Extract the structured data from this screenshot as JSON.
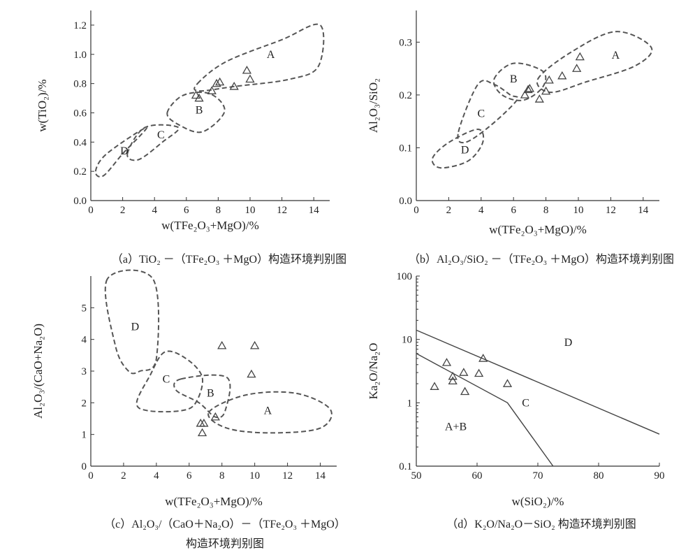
{
  "chart_data": [
    {
      "type": "scatter",
      "caption": "（a）TiO₂ －（TFe₂O₃ ＋MgO）构造环境判别图",
      "xlabel": "w(TFe₂O₃+MgO)/%",
      "ylabel": "w(TiO₂)/%",
      "xlim": [
        0,
        15
      ],
      "ylim": [
        0,
        1.3
      ],
      "xticks": [
        0,
        2,
        4,
        6,
        8,
        10,
        12,
        14
      ],
      "yticks": [
        0.0,
        0.2,
        0.4,
        0.6,
        0.8,
        1.0,
        1.2
      ],
      "ytick_labels": [
        "0.0",
        "0.2",
        "0.4",
        "0.6",
        "0.8",
        "1.0",
        "1.2"
      ],
      "points": [
        [
          6.6,
          0.72
        ],
        [
          6.8,
          0.7
        ],
        [
          7.6,
          0.75
        ],
        [
          7.9,
          0.8
        ],
        [
          8.1,
          0.81
        ],
        [
          9.0,
          0.78
        ],
        [
          9.8,
          0.89
        ],
        [
          10.0,
          0.83
        ]
      ],
      "regions": [
        {
          "label": "A",
          "label_at": [
            11.3,
            1.0
          ],
          "path": [
            [
              6.7,
              0.8
            ],
            [
              8.5,
              0.95
            ],
            [
              12,
              1.1
            ],
            [
              14.4,
              1.2
            ],
            [
              14.3,
              0.92
            ],
            [
              12.5,
              0.83
            ],
            [
              9,
              0.78
            ],
            [
              6.8,
              0.75
            ]
          ]
        },
        {
          "label": "B",
          "label_at": [
            6.8,
            0.62
          ],
          "path": [
            [
              4.8,
              0.6
            ],
            [
              5.8,
              0.72
            ],
            [
              7.5,
              0.73
            ],
            [
              8.4,
              0.61
            ],
            [
              7.0,
              0.47
            ],
            [
              5.5,
              0.52
            ]
          ]
        },
        {
          "label": "C",
          "label_at": [
            4.4,
            0.45
          ],
          "path": [
            [
              2.3,
              0.32
            ],
            [
              3.4,
              0.5
            ],
            [
              5.5,
              0.5
            ],
            [
              4.5,
              0.4
            ],
            [
              3.0,
              0.28
            ]
          ]
        },
        {
          "label": "D",
          "label_at": [
            2.1,
            0.34
          ],
          "path": [
            [
              0.3,
              0.2
            ],
            [
              1.0,
              0.32
            ],
            [
              3.5,
              0.5
            ],
            [
              2.0,
              0.32
            ],
            [
              0.8,
              0.17
            ]
          ]
        }
      ]
    },
    {
      "type": "scatter",
      "caption": "（b）Al₂O₃/SiO₂ －（TFe₂O₃ ＋MgO）构造环境判别图",
      "xlabel": "w(TFe₂O₃+MgO)/%",
      "ylabel": "Al₂O₃/SiO₂",
      "xlim": [
        0,
        15
      ],
      "ylim": [
        0,
        0.36
      ],
      "xticks": [
        0,
        2,
        4,
        6,
        8,
        10,
        12,
        14
      ],
      "yticks": [
        0.0,
        0.1,
        0.2,
        0.3
      ],
      "ytick_labels": [
        "0.0",
        "0.1",
        "0.2",
        "0.3"
      ],
      "points": [
        [
          6.7,
          0.2
        ],
        [
          6.9,
          0.21
        ],
        [
          7.0,
          0.212
        ],
        [
          7.6,
          0.192
        ],
        [
          8.0,
          0.207
        ],
        [
          8.2,
          0.228
        ],
        [
          9.0,
          0.236
        ],
        [
          9.9,
          0.25
        ],
        [
          10.1,
          0.272
        ]
      ],
      "regions": [
        {
          "label": "A",
          "label_at": [
            12.3,
            0.275
          ],
          "path": [
            [
              7.5,
              0.23
            ],
            [
              9.5,
              0.28
            ],
            [
              12.3,
              0.32
            ],
            [
              14.5,
              0.29
            ],
            [
              13.5,
              0.255
            ],
            [
              10.5,
              0.225
            ],
            [
              8.3,
              0.205
            ]
          ]
        },
        {
          "label": "B",
          "label_at": [
            6.0,
            0.23
          ],
          "path": [
            [
              4.8,
              0.23
            ],
            [
              6.0,
              0.26
            ],
            [
              7.8,
              0.245
            ],
            [
              7.8,
              0.215
            ],
            [
              6.6,
              0.19
            ],
            [
              5.3,
              0.2
            ]
          ]
        },
        {
          "label": "C",
          "label_at": [
            4.0,
            0.165
          ],
          "path": [
            [
              2.6,
              0.13
            ],
            [
              3.8,
              0.22
            ],
            [
              4.8,
              0.22
            ],
            [
              5.8,
              0.2
            ],
            [
              6.2,
              0.19
            ],
            [
              4.5,
              0.14
            ],
            [
              3.0,
              0.11
            ]
          ]
        },
        {
          "label": "D",
          "label_at": [
            3.0,
            0.096
          ],
          "path": [
            [
              1.0,
              0.08
            ],
            [
              2.0,
              0.11
            ],
            [
              3.8,
              0.135
            ],
            [
              4.1,
              0.11
            ],
            [
              3.2,
              0.075
            ],
            [
              1.5,
              0.062
            ]
          ]
        }
      ]
    },
    {
      "type": "scatter",
      "caption_lines": [
        "（c）Al₂O₃/（CaO＋Na₂O）－（TFe₂O₃ ＋MgO）",
        "构造环境判别图"
      ],
      "xlabel": "w(TFe₂O₃+MgO)/%",
      "ylabel": "Al₂O₃/(CaO+Na₂O)",
      "xlim": [
        0,
        15
      ],
      "ylim": [
        0,
        6
      ],
      "xticks": [
        0,
        2,
        4,
        6,
        8,
        10,
        12,
        14
      ],
      "yticks": [
        0,
        1,
        2,
        3,
        4,
        5
      ],
      "ytick_labels": [
        "0",
        "1",
        "2",
        "3",
        "4",
        "5"
      ],
      "points": [
        [
          6.7,
          1.35
        ],
        [
          6.9,
          1.35
        ],
        [
          6.8,
          1.05
        ],
        [
          7.6,
          1.55
        ],
        [
          8.0,
          3.8
        ],
        [
          9.8,
          2.9
        ],
        [
          10.0,
          3.8
        ]
      ],
      "regions": [
        {
          "label": "A",
          "label_at": [
            10.8,
            1.75
          ],
          "path": [
            [
              7.2,
              1.7
            ],
            [
              9.5,
              2.25
            ],
            [
              12.5,
              2.3
            ],
            [
              14.6,
              1.8
            ],
            [
              14.0,
              1.2
            ],
            [
              11.0,
              1.05
            ],
            [
              8.3,
              1.2
            ]
          ]
        },
        {
          "label": "B",
          "label_at": [
            7.3,
            2.3
          ],
          "path": [
            [
              5.5,
              2.75
            ],
            [
              8.3,
              2.8
            ],
            [
              8.2,
              1.75
            ],
            [
              7.6,
              1.55
            ],
            [
              6.6,
              2.0
            ],
            [
              5.2,
              2.4
            ]
          ]
        },
        {
          "label": "C",
          "label_at": [
            4.6,
            2.75
          ],
          "path": [
            [
              2.8,
              2.0
            ],
            [
              3.6,
              2.85
            ],
            [
              4.5,
              3.6
            ],
            [
              5.8,
              3.4
            ],
            [
              6.8,
              2.8
            ],
            [
              6.4,
              2.0
            ],
            [
              5.5,
              1.75
            ],
            [
              3.5,
              1.75
            ]
          ]
        },
        {
          "label": "D",
          "label_at": [
            2.7,
            4.4
          ],
          "path": [
            [
              1.0,
              5.9
            ],
            [
              1.5,
              3.8
            ],
            [
              2.3,
              3.0
            ],
            [
              3.0,
              3.0
            ],
            [
              4.0,
              3.4
            ],
            [
              3.8,
              5.9
            ]
          ]
        }
      ]
    },
    {
      "type": "scatter",
      "caption": "（d）K₂O/Na₂O－SiO₂ 构造环境判别图",
      "xlabel": "w(SiO₂)/%",
      "ylabel": "Ka₂O/Na₂O",
      "xlim": [
        50,
        90
      ],
      "ylim": [
        0.1,
        100
      ],
      "yscale": "log",
      "xticks": [
        50,
        60,
        70,
        80,
        90
      ],
      "yticks": [
        0.1,
        1,
        10,
        100
      ],
      "ytick_labels": [
        "0.1",
        "1",
        "10",
        "100"
      ],
      "points": [
        [
          53,
          1.8
        ],
        [
          55,
          4.3
        ],
        [
          56,
          2.6
        ],
        [
          56,
          2.2
        ],
        [
          57.8,
          3.0
        ],
        [
          58,
          1.5
        ],
        [
          60.3,
          2.9
        ],
        [
          61,
          5.0
        ],
        [
          65,
          2.0
        ]
      ],
      "boundaries": [
        [
          [
            50,
            14
          ],
          [
            90,
            0.32
          ]
        ],
        [
          [
            50,
            6
          ],
          [
            65,
            1.0
          ],
          [
            72.5,
            0.1
          ]
        ]
      ],
      "region_labels": [
        {
          "label": "D",
          "label_at": [
            75,
            9.0
          ]
        },
        {
          "label": "C",
          "label_at": [
            68,
            1.0
          ]
        },
        {
          "label": "A+B",
          "label_at": [
            56.5,
            0.42
          ]
        }
      ]
    }
  ]
}
